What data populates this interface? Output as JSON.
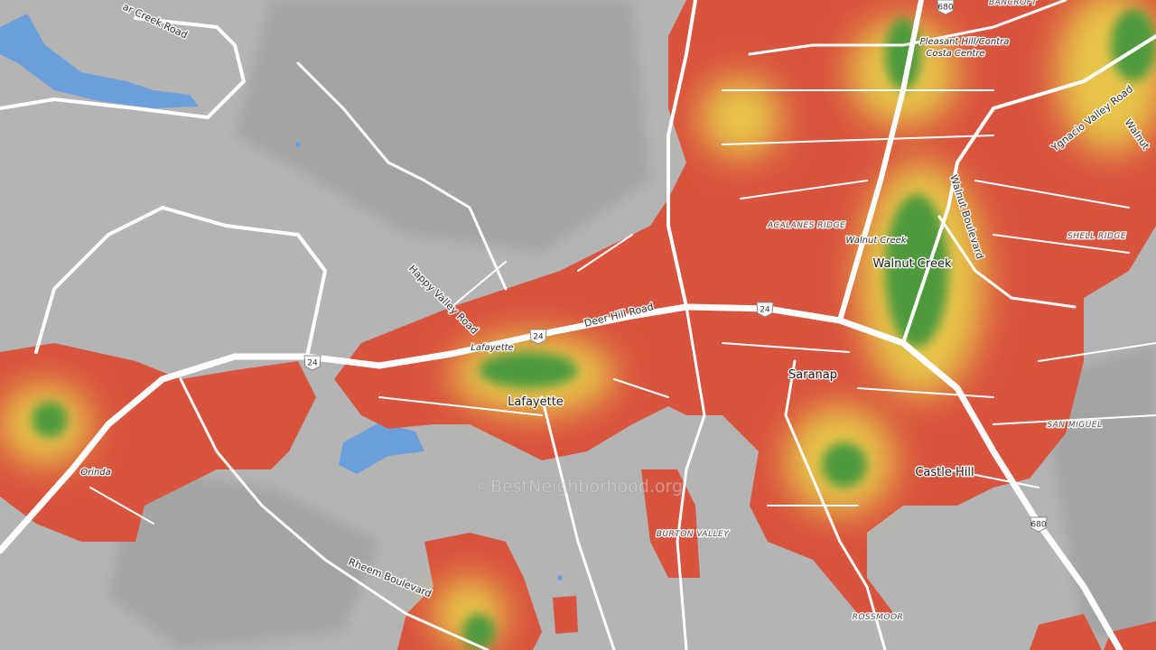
{
  "roads": [
    "ar Creek Road",
    "Happy Valley Road",
    "Deer Hill Road",
    "Ygnacio Valley Road",
    "Walnut Boulevard",
    "Rheem Boulevard",
    "Walnut"
  ],
  "places": [
    "BANCROFT",
    "Pleasant Hill/Contra",
    "Costa Centre",
    "ACALANES RIDGE",
    "Walnut Creek",
    "Walnut Creek",
    "SHELL RIDGE",
    "Lafayette",
    "Lafayette",
    "Saranap",
    "SAN MIGUEL",
    "Castle Hill",
    "Orinda",
    "BURTON VALLEY",
    "ROSSMOOR"
  ],
  "shields": [
    "680",
    "24",
    "24",
    "24",
    "680"
  ],
  "watermark": "©BestNeighborhood.org"
}
